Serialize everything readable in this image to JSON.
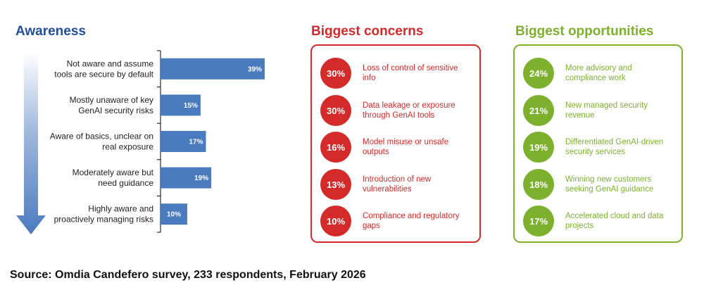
{
  "awareness": {
    "title": "Awareness"
  },
  "chart_data": {
    "type": "bar",
    "orientation": "horizontal",
    "title": "Awareness",
    "categories": [
      [
        "Not aware and assume",
        "tools are secure by default"
      ],
      [
        "Mostly unaware of key",
        "GenAI security risks"
      ],
      [
        "Aware of basics, unclear on",
        "real exposure"
      ],
      [
        "Moderately aware but",
        "need guidance"
      ],
      [
        "Highly aware and",
        "proactively managing risks"
      ]
    ],
    "values": [
      39,
      15,
      17,
      19,
      10
    ],
    "value_labels": [
      "39%",
      "15%",
      "17%",
      "19%",
      "10%"
    ],
    "unit": "%",
    "xlim": [
      0,
      39
    ],
    "bar_color": "#4a7bbf",
    "grid": false
  },
  "concerns": {
    "title": "Biggest concerns",
    "color": "#d42a2a",
    "items": [
      {
        "pct": "30%",
        "text": "Loss of control of sensitive info"
      },
      {
        "pct": "30%",
        "text": "Data leakage or exposure through GenAI tools"
      },
      {
        "pct": "16%",
        "text": "Model misuse or unsafe outputs"
      },
      {
        "pct": "13%",
        "text": "Introduction of new vulnerabilities"
      },
      {
        "pct": "10%",
        "text": "Compliance and regulatory gaps"
      }
    ]
  },
  "opportunities": {
    "title": "Biggest opportunities",
    "color": "#7db12d",
    "items": [
      {
        "pct": "24%",
        "text": "More advisory and compliance work"
      },
      {
        "pct": "21%",
        "text": "New managed security revenue"
      },
      {
        "pct": "19%",
        "text": "Differentiated GenAI-driven security services"
      },
      {
        "pct": "18%",
        "text": "Winning new customers seeking GenAI guidance"
      },
      {
        "pct": "17%",
        "text": "Accelerated cloud and data projects"
      }
    ]
  },
  "source": "Source: Omdia Candefero survey, 233 respondents, February 2026"
}
